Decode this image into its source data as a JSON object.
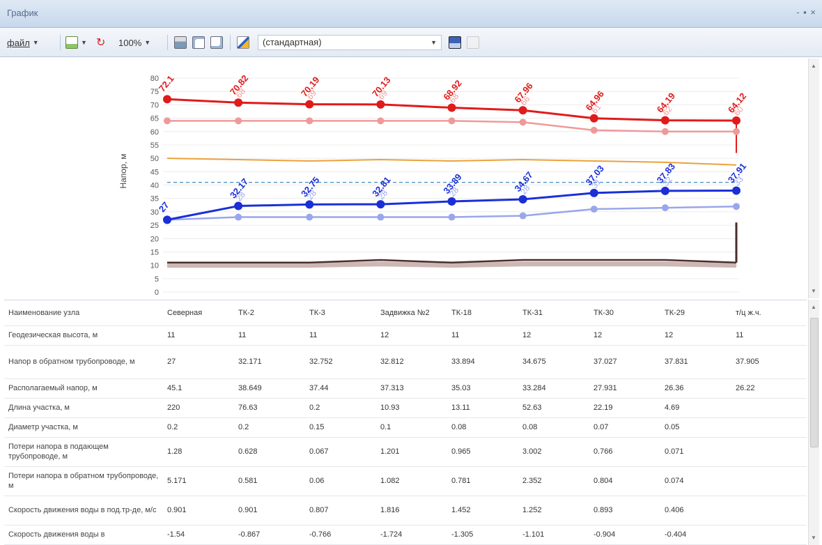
{
  "window": {
    "title": "График",
    "controls": "- ▪ ×"
  },
  "toolbar": {
    "file_label": "файл",
    "zoom": "100%",
    "scheme": "(стандартная)",
    "icons": [
      "new-doc-icon",
      "refresh-icon",
      "print-icon",
      "print-preview-icon",
      "page-setup-icon",
      "chart-settings-icon",
      "save-icon",
      "export-icon"
    ]
  },
  "colors": {
    "supply": "#e01b1b",
    "supply_light": "#ee9a9a",
    "return": "#1a2fd8",
    "return_light": "#9aa6ec",
    "available": "#eba23a",
    "static": "#2f7fb5",
    "ground": "#4a2e2a",
    "ground_light": "#cdb7b3"
  },
  "chart_data": {
    "type": "line",
    "ylabel": "Напор, м",
    "ylim": [
      0,
      80
    ],
    "yticks": [
      0,
      5,
      10,
      15,
      20,
      25,
      30,
      35,
      40,
      45,
      50,
      55,
      60,
      65,
      70,
      75,
      80
    ],
    "x": [
      1,
      2,
      3,
      4,
      5,
      6,
      7,
      8,
      9
    ],
    "series": [
      {
        "key": "supply",
        "values": [
          72.1,
          70.82,
          70.19,
          70.13,
          68.92,
          67.96,
          64.96,
          64.19,
          64.12
        ],
        "labels": [
          "72.1",
          "70.82",
          "70.19",
          "70.13",
          "68.92",
          "67.96",
          "64.96",
          "64.19",
          "64.12"
        ],
        "sublabels": [
          "",
          "68",
          "69",
          "69",
          "68",
          "66",
          "61",
          "62",
          "60"
        ]
      },
      {
        "key": "supply_light",
        "values": [
          64,
          64,
          64,
          64,
          64,
          63.5,
          60.5,
          60,
          60
        ]
      },
      {
        "key": "available",
        "values": [
          50,
          49.5,
          49,
          49.5,
          49,
          49.5,
          49,
          48.5,
          47.5
        ]
      },
      {
        "key": "static",
        "values": [
          41,
          41,
          41,
          41,
          41,
          41,
          41,
          41,
          41
        ]
      },
      {
        "key": "return",
        "values": [
          27,
          32.17,
          32.75,
          32.81,
          33.89,
          34.67,
          37.03,
          37.83,
          37.91
        ],
        "labels": [
          "27",
          "32.17",
          "32.75",
          "32.81",
          "33.89",
          "34.67",
          "37.03",
          "37.83",
          "37.91"
        ],
        "sublabels": [
          "",
          "28",
          "28",
          "28",
          "28",
          "28",
          "31",
          "32",
          "33"
        ]
      },
      {
        "key": "return_light",
        "values": [
          27,
          28,
          28,
          28,
          28,
          28.5,
          31,
          31.5,
          32
        ]
      },
      {
        "key": "ground",
        "values": [
          11,
          11,
          11,
          12,
          11,
          12,
          12,
          12,
          11
        ]
      },
      {
        "key": "ground_light",
        "values": [
          10,
          10,
          10,
          10.5,
          10,
          10.5,
          10.5,
          10.5,
          10
        ]
      }
    ]
  },
  "table": {
    "rows": [
      [
        "Наименование узла",
        "Северная",
        "ТК-2",
        "ТК-3",
        "Задвижка №2",
        "ТК-18",
        "ТК-31",
        "ТК-30",
        "ТК-29",
        "т/ц ж.ч."
      ],
      [
        "Геодезическая высота, м",
        "11",
        "11",
        "11",
        "12",
        "11",
        "12",
        "12",
        "12",
        "11"
      ],
      [
        "Напор в обратном трубопроводе, м",
        "27",
        "32.171",
        "32.752",
        "32.812",
        "33.894",
        "34.675",
        "37.027",
        "37.831",
        "37.905"
      ],
      [
        "Располагаемый напор, м",
        "45.1",
        "38.649",
        "37.44",
        "37.313",
        "35.03",
        "33.284",
        "27.931",
        "26.36",
        "26.22"
      ],
      [
        "Длина участка, м",
        "220",
        "76.63",
        "0.2",
        "10.93",
        "13.11",
        "52.63",
        "22.19",
        "4.69",
        ""
      ],
      [
        "Диаметр участка, м",
        "0.2",
        "0.2",
        "0.15",
        "0.1",
        "0.08",
        "0.08",
        "0.07",
        "0.05",
        ""
      ],
      [
        "Потери напора в подающем трубопроводе, м",
        "1.28",
        "0.628",
        "0.067",
        "1.201",
        "0.965",
        "3.002",
        "0.766",
        "0.071",
        ""
      ],
      [
        "Потери напора в обратном трубопроводе, м",
        "5.171",
        "0.581",
        "0.06",
        "1.082",
        "0.781",
        "2.352",
        "0.804",
        "0.074",
        ""
      ],
      [
        "Скорость движения воды в под.тр-де, м/с",
        "0.901",
        "0.901",
        "0.807",
        "1.816",
        "1.452",
        "1.252",
        "0.893",
        "0.406",
        ""
      ],
      [
        "Скорость движения воды в",
        "-1.54",
        "-0.867",
        "-0.766",
        "-1.724",
        "-1.305",
        "-1.101",
        "-0.904",
        "-0.404",
        ""
      ]
    ]
  }
}
